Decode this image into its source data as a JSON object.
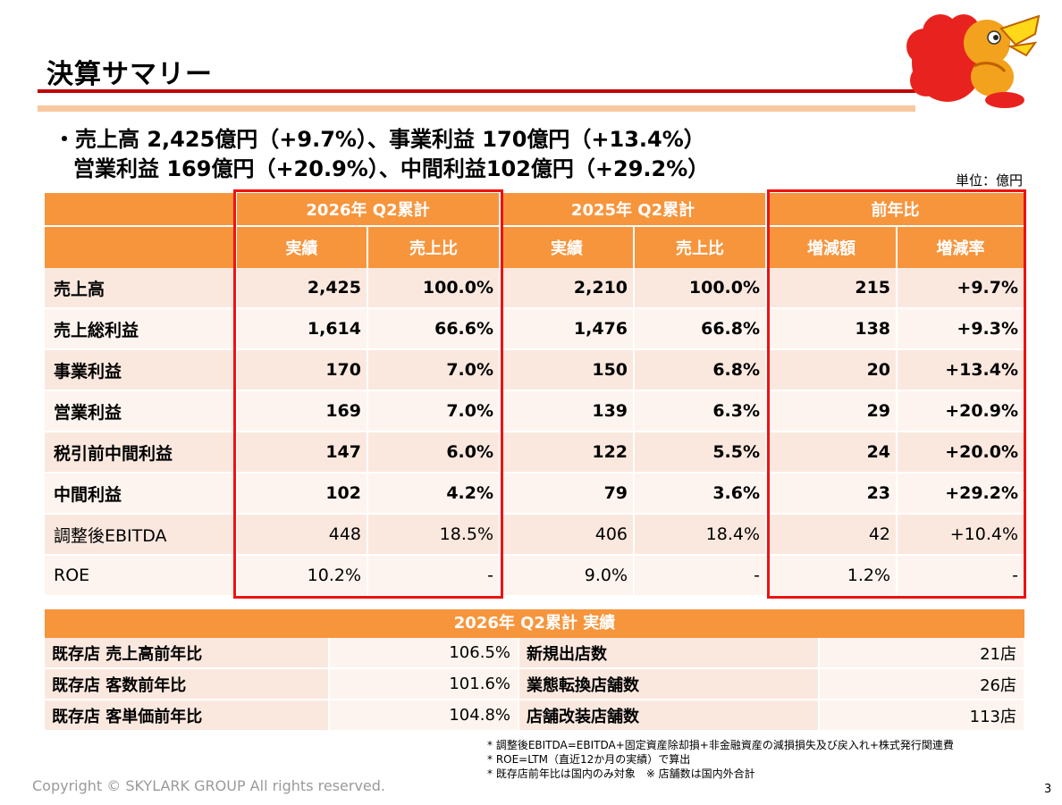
{
  "title": "決算サマリー",
  "summary": {
    "line1": "・売上高 2,425億円（+9.7%）、事業利益 170億円（+13.4%）",
    "line2": "営業利益 169億円（+20.9%）、中間利益102億円（+29.2%）"
  },
  "unit": "単位：億円",
  "main_table": {
    "group_headers": [
      "2026年 Q2累計",
      "2025年 Q2累計",
      "前年比"
    ],
    "sub_headers": [
      "実績",
      "売上比",
      "実績",
      "売上比",
      "増減額",
      "増減率"
    ],
    "rows": [
      {
        "label": "売上高",
        "cells": [
          "2,425",
          "100.0%",
          "2,210",
          "100.0%",
          "215",
          "+9.7%"
        ]
      },
      {
        "label": "売上総利益",
        "cells": [
          "1,614",
          "66.6%",
          "1,476",
          "66.8%",
          "138",
          "+9.3%"
        ]
      },
      {
        "label": "事業利益",
        "cells": [
          "170",
          "7.0%",
          "150",
          "6.8%",
          "20",
          "+13.4%"
        ]
      },
      {
        "label": "営業利益",
        "cells": [
          "169",
          "7.0%",
          "139",
          "6.3%",
          "29",
          "+20.9%"
        ]
      },
      {
        "label": "税引前中間利益",
        "cells": [
          "147",
          "6.0%",
          "122",
          "5.5%",
          "24",
          "+20.0%"
        ]
      },
      {
        "label": "中間利益",
        "cells": [
          "102",
          "4.2%",
          "79",
          "3.6%",
          "23",
          "+29.2%"
        ]
      },
      {
        "label": "調整後EBITDA",
        "cells": [
          "448",
          "18.5%",
          "406",
          "18.4%",
          "42",
          "+10.4%"
        ]
      },
      {
        "label": "ROE",
        "cells": [
          "10.2%",
          "-",
          "9.0%",
          "-",
          "1.2%",
          "-"
        ]
      }
    ]
  },
  "kpi": {
    "title": "2026年 Q2累計 実績",
    "rows": [
      {
        "k1": "既存店 売上高前年比",
        "v1": "106.5%",
        "k2": "新規出店数",
        "v2": "21店"
      },
      {
        "k1": "既存店 客数前年比",
        "v1": "101.6%",
        "k2": "業態転換店舗数",
        "v2": "26店"
      },
      {
        "k1": "既存店 客単価前年比",
        "v1": "104.8%",
        "k2": "店舗改装店舗数",
        "v2": "113店"
      }
    ]
  },
  "notes": [
    "* 調整後EBITDA=EBITDA+固定資産除却損+非金融資産の減損損失及び戻入れ+株式発行関連費",
    "* ROE=LTM（直近12か月の実績）で算出",
    "* 既存店前年比は国内のみ対象　※ 店舗数は国内外合計"
  ],
  "copyright": "Copyright © SKYLARK GROUP All rights reserved.",
  "page_number": "3",
  "colors": {
    "header_orange": "#f7953d",
    "highlight_red": "#ee1111",
    "title_rule": "#c00000",
    "row_dark": "#fae8df",
    "row_light": "#fdf4ef"
  }
}
